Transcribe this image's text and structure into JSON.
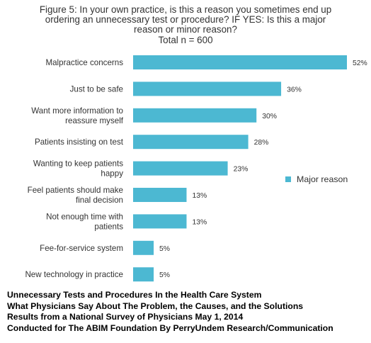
{
  "title_lines": [
    "Figure 5: In your own practice, is this a reason you sometimes end up",
    "ordering an unnecessary test or procedure? IF YES: Is this a major",
    "reason or minor reason?",
    "Total n = 600"
  ],
  "chart_data": {
    "type": "bar",
    "orientation": "horizontal",
    "title": "Figure 5: In your own practice, is this a reason you sometimes end up ordering an unnecessary test or procedure? IF YES: Is this a major reason or minor reason? Total n = 600",
    "categories": [
      [
        "Malpractice concerns"
      ],
      [
        "Just to be safe"
      ],
      [
        "Want more information to",
        "reassure myself"
      ],
      [
        "Patients insisting on test"
      ],
      [
        "Wanting to keep patients",
        "happy"
      ],
      [
        "Feel patients should make",
        "final decision"
      ],
      [
        "Not enough time with",
        "patients"
      ],
      [
        "Fee-for-service system"
      ],
      [
        "New technology in practice"
      ]
    ],
    "series": [
      {
        "name": "Major reason",
        "values": [
          52,
          36,
          30,
          28,
          23,
          13,
          13,
          5,
          5
        ],
        "labels": [
          "52%",
          "36%",
          "30%",
          "28%",
          "23%",
          "13%",
          "13%",
          "5%",
          "5%"
        ]
      }
    ],
    "xlim": [
      0,
      52
    ],
    "grid": false,
    "legend_position": "right",
    "color": "#4cb8d2"
  },
  "legend": {
    "label": "Major reason"
  },
  "footer_lines": [
    "Unnecessary Tests and Procedures In the Health Care System",
    "What Physicians Say About The Problem, the Causes, and the Solutions",
    "Results from a National Survey of Physicians May 1, 2014",
    "Conducted for The ABIM Foundation By PerryUndem Research/Communication"
  ]
}
